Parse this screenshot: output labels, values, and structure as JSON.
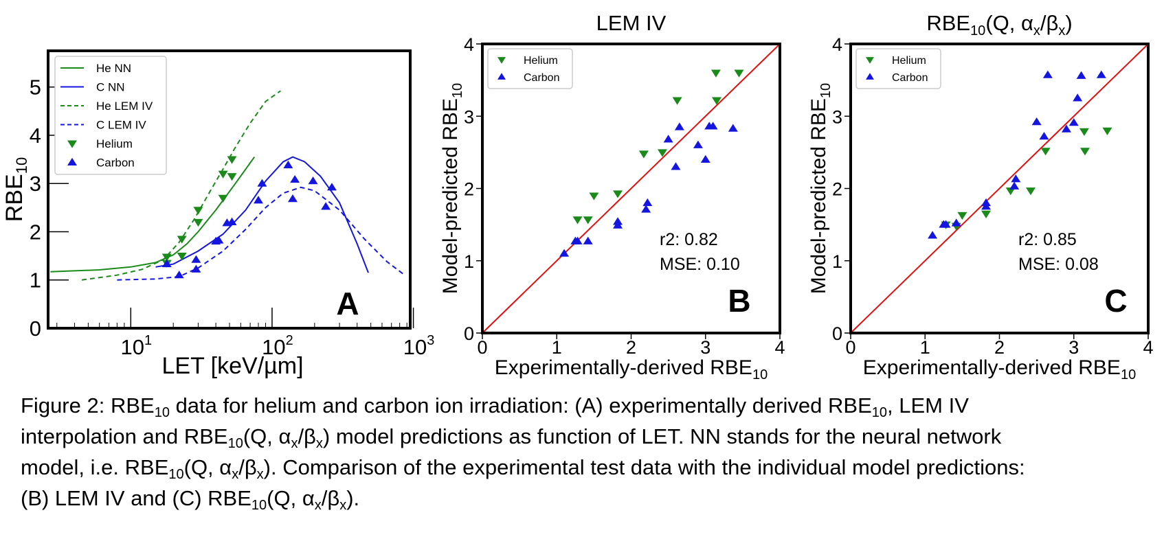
{
  "chart_data": [
    {
      "type": "line",
      "panel_letter": "A",
      "xlabel": "LET [keV/µm]",
      "ylabel": "RBE",
      "ylabel_sub": "10",
      "x_scale": "log",
      "xlim": [
        2.6,
        950
      ],
      "ylim": [
        0,
        5.75
      ],
      "x_ticks": [
        10,
        100,
        1000
      ],
      "x_tick_labels": [
        {
          "base": "10",
          "exp": "1"
        },
        {
          "base": "10",
          "exp": "2"
        },
        {
          "base": "10",
          "exp": "3"
        }
      ],
      "y_ticks": [
        0,
        1,
        2,
        3,
        4,
        5
      ],
      "legend_position": "upper-left",
      "series": [
        {
          "name": "He NN",
          "kind": "line",
          "style": "solid",
          "color": "#1a8a1a",
          "points": [
            [
              2.7,
              1.17
            ],
            [
              6,
              1.21
            ],
            [
              10,
              1.27
            ],
            [
              15,
              1.36
            ],
            [
              20,
              1.52
            ],
            [
              25,
              1.75
            ],
            [
              30,
              2.0
            ],
            [
              40,
              2.45
            ],
            [
              55,
              3.0
            ],
            [
              75,
              3.55
            ]
          ]
        },
        {
          "name": "C NN",
          "kind": "line",
          "style": "solid",
          "color": "#1515e0",
          "points": [
            [
              15,
              1.27
            ],
            [
              20,
              1.33
            ],
            [
              30,
              1.6
            ],
            [
              45,
              1.95
            ],
            [
              65,
              2.45
            ],
            [
              90,
              3.05
            ],
            [
              120,
              3.45
            ],
            [
              140,
              3.55
            ],
            [
              170,
              3.45
            ],
            [
              220,
              3.15
            ],
            [
              300,
              2.6
            ],
            [
              400,
              1.75
            ],
            [
              480,
              1.15
            ]
          ]
        },
        {
          "name": "He LEM IV",
          "kind": "line",
          "style": "dashed",
          "color": "#1a8a1a",
          "points": [
            [
              4.5,
              1.0
            ],
            [
              8,
              1.1
            ],
            [
              12,
              1.22
            ],
            [
              17,
              1.42
            ],
            [
              22,
              1.78
            ],
            [
              28,
              2.25
            ],
            [
              35,
              2.75
            ],
            [
              45,
              3.3
            ],
            [
              55,
              3.75
            ],
            [
              70,
              4.25
            ],
            [
              90,
              4.7
            ],
            [
              115,
              4.92
            ]
          ]
        },
        {
          "name": "C LEM IV",
          "kind": "line",
          "style": "dashed",
          "color": "#1515e0",
          "points": [
            [
              8,
              1.0
            ],
            [
              15,
              1.02
            ],
            [
              22,
              1.07
            ],
            [
              30,
              1.25
            ],
            [
              45,
              1.6
            ],
            [
              65,
              2.05
            ],
            [
              90,
              2.5
            ],
            [
              120,
              2.8
            ],
            [
              160,
              2.92
            ],
            [
              200,
              2.85
            ],
            [
              300,
              2.45
            ],
            [
              450,
              1.85
            ],
            [
              650,
              1.38
            ],
            [
              850,
              1.12
            ]
          ]
        },
        {
          "name": "Helium",
          "kind": "scatter",
          "marker": "triangle-down",
          "color": "#1a8a1a",
          "points": [
            [
              18,
              1.35
            ],
            [
              18,
              1.48
            ],
            [
              23,
              1.5
            ],
            [
              23,
              1.85
            ],
            [
              30,
              2.2
            ],
            [
              30,
              2.45
            ],
            [
              45,
              2.7
            ],
            [
              45,
              3.2
            ],
            [
              52,
              3.15
            ],
            [
              52,
              3.5
            ]
          ]
        },
        {
          "name": "Carbon",
          "kind": "scatter",
          "marker": "triangle-up",
          "color": "#1515e0",
          "points": [
            [
              18,
              1.33
            ],
            [
              22,
              1.1
            ],
            [
              29,
              1.22
            ],
            [
              29,
              1.42
            ],
            [
              40,
              1.8
            ],
            [
              42,
              1.82
            ],
            [
              48,
              2.18
            ],
            [
              52,
              2.2
            ],
            [
              80,
              2.65
            ],
            [
              85,
              3.0
            ],
            [
              130,
              3.38
            ],
            [
              140,
              2.68
            ],
            [
              145,
              3.08
            ],
            [
              195,
              3.05
            ],
            [
              240,
              2.52
            ],
            [
              265,
              2.92
            ]
          ]
        }
      ]
    },
    {
      "type": "scatter",
      "panel_letter": "B",
      "title": "LEM IV",
      "xlabel": "Experimentally-derived RBE",
      "xlabel_sub": "10",
      "ylabel": "Model-predicted RBE",
      "ylabel_sub": "10",
      "xlim": [
        0,
        4
      ],
      "ylim": [
        0,
        4
      ],
      "x_ticks": [
        0,
        1,
        2,
        3,
        4
      ],
      "y_ticks": [
        0,
        1,
        2,
        3,
        4
      ],
      "legend_position": "upper-left",
      "annotations": [
        "r2: 0.82",
        "MSE: 0.10"
      ],
      "identity_line_color": "#e01010",
      "series": [
        {
          "name": "Helium",
          "marker": "triangle-down",
          "color": "#1a8a1a",
          "points": [
            [
              1.28,
              1.57
            ],
            [
              1.42,
              1.57
            ],
            [
              1.5,
              1.9
            ],
            [
              1.82,
              1.93
            ],
            [
              2.17,
              2.48
            ],
            [
              2.42,
              2.5
            ],
            [
              2.62,
              3.22
            ],
            [
              3.14,
              3.6
            ],
            [
              3.15,
              3.22
            ],
            [
              3.45,
              3.6
            ]
          ]
        },
        {
          "name": "Carbon",
          "marker": "triangle-up",
          "color": "#1515e0",
          "points": [
            [
              1.1,
              1.1
            ],
            [
              1.25,
              1.27
            ],
            [
              1.28,
              1.27
            ],
            [
              1.42,
              1.27
            ],
            [
              1.82,
              1.49
            ],
            [
              1.82,
              1.54
            ],
            [
              2.2,
              1.71
            ],
            [
              2.22,
              1.8
            ],
            [
              2.5,
              2.68
            ],
            [
              2.6,
              2.3
            ],
            [
              2.65,
              2.85
            ],
            [
              2.9,
              2.6
            ],
            [
              3.0,
              2.4
            ],
            [
              3.05,
              2.86
            ],
            [
              3.1,
              2.86
            ],
            [
              3.37,
              2.83
            ]
          ]
        }
      ]
    },
    {
      "type": "scatter",
      "panel_letter": "C",
      "title": "RBE",
      "title_sub": "10",
      "title_rest": "(Q, α",
      "title_sub2": "x",
      "title_mid": "/β",
      "title_sub3": "x",
      "title_end": ")",
      "xlabel": "Experimentally-derived RBE",
      "xlabel_sub": "10",
      "ylabel": "Model-predicted RBE",
      "ylabel_sub": "10",
      "xlim": [
        0,
        4
      ],
      "ylim": [
        0,
        4
      ],
      "x_ticks": [
        0,
        1,
        2,
        3,
        4
      ],
      "y_ticks": [
        0,
        1,
        2,
        3,
        4
      ],
      "legend_position": "upper-left",
      "annotations": [
        "r2: 0.85",
        "MSE: 0.08"
      ],
      "identity_line_color": "#e01010",
      "series": [
        {
          "name": "Helium",
          "marker": "triangle-down",
          "color": "#1a8a1a",
          "points": [
            [
              1.28,
              1.5
            ],
            [
              1.42,
              1.48
            ],
            [
              1.5,
              1.63
            ],
            [
              1.82,
              1.65
            ],
            [
              2.15,
              1.97
            ],
            [
              2.42,
              1.97
            ],
            [
              2.62,
              2.52
            ],
            [
              3.14,
              2.79
            ],
            [
              3.15,
              2.52
            ],
            [
              3.45,
              2.8
            ]
          ]
        },
        {
          "name": "Carbon",
          "marker": "triangle-up",
          "color": "#1515e0",
          "points": [
            [
              1.1,
              1.35
            ],
            [
              1.25,
              1.5
            ],
            [
              1.28,
              1.5
            ],
            [
              1.42,
              1.52
            ],
            [
              1.82,
              1.8
            ],
            [
              1.82,
              1.75
            ],
            [
              2.2,
              2.03
            ],
            [
              2.22,
              2.13
            ],
            [
              2.5,
              2.92
            ],
            [
              2.6,
              2.72
            ],
            [
              2.65,
              3.57
            ],
            [
              2.9,
              2.82
            ],
            [
              3.0,
              2.91
            ],
            [
              3.05,
              3.25
            ],
            [
              3.1,
              3.56
            ],
            [
              3.37,
              3.57
            ]
          ]
        }
      ]
    }
  ],
  "caption": {
    "lines": [
      [
        "Figure 2: RBE",
        {
          "sub": "10"
        },
        " data for helium and carbon ion irradiation: (A) experimentally derived RBE",
        {
          "sub": "10"
        },
        ", LEM IV"
      ],
      [
        "interpolation and RBE",
        {
          "sub": "10"
        },
        "(Q, α",
        {
          "sub": "x"
        },
        "/β",
        {
          "sub": "x"
        },
        ") model predictions as function of LET. NN stands for the neural network"
      ],
      [
        "model, i.e. RBE",
        {
          "sub": "10"
        },
        "(Q, α",
        {
          "sub": "x"
        },
        "/β",
        {
          "sub": "x"
        },
        "). Comparison of the experimental test data with the individual model predictions:"
      ],
      [
        "(B) LEM IV and (C) RBE",
        {
          "sub": "10"
        },
        "(Q, α",
        {
          "sub": "x"
        },
        "/β",
        {
          "sub": "x"
        },
        ")."
      ]
    ]
  }
}
